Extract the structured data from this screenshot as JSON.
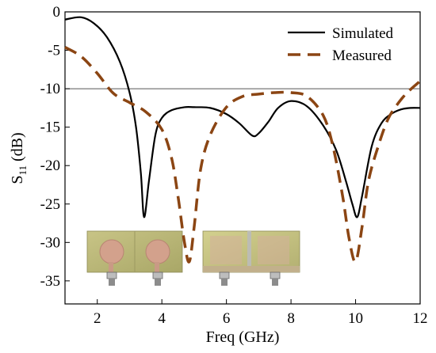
{
  "chart_data": {
    "type": "line",
    "xlabel": "Freq (GHz)",
    "ylabel": {
      "main": "S",
      "subscript": "11",
      "suffix": " (dB)"
    },
    "xlim": [
      1,
      12
    ],
    "ylim": [
      -38,
      0
    ],
    "xticks": [
      2,
      4,
      6,
      8,
      10,
      12
    ],
    "yticks": [
      0,
      -5,
      -10,
      -15,
      -20,
      -25,
      -30,
      -35
    ],
    "reference_line": -10,
    "legend_position": "top-right",
    "series": [
      {
        "name": "Simulated",
        "color": "#000000",
        "style": "solid",
        "x": [
          1.0,
          1.5,
          1.9,
          2.3,
          2.7,
          3.0,
          3.2,
          3.35,
          3.45,
          3.6,
          3.8,
          4.0,
          4.3,
          4.7,
          5.0,
          5.5,
          6.0,
          6.4,
          6.8,
          7.0,
          7.3,
          7.6,
          8.0,
          8.5,
          9.0,
          9.4,
          9.7,
          9.9,
          10.05,
          10.2,
          10.5,
          10.8,
          11.1,
          11.4,
          11.7,
          12.0
        ],
        "y": [
          -1.0,
          -0.7,
          -1.5,
          -3.3,
          -6.5,
          -10.5,
          -15.0,
          -21.0,
          -26.7,
          -22.0,
          -16.0,
          -13.8,
          -12.8,
          -12.4,
          -12.4,
          -12.5,
          -13.3,
          -14.5,
          -16.1,
          -15.8,
          -14.3,
          -12.5,
          -11.6,
          -12.3,
          -14.8,
          -18.0,
          -22.0,
          -25.0,
          -26.7,
          -24.0,
          -17.5,
          -14.5,
          -13.3,
          -12.7,
          -12.5,
          -12.5
        ]
      },
      {
        "name": "Measured",
        "color": "#8b4513",
        "style": "dashed",
        "x": [
          1.0,
          1.5,
          2.0,
          2.5,
          3.0,
          3.5,
          4.0,
          4.3,
          4.5,
          4.7,
          4.85,
          5.0,
          5.2,
          5.5,
          6.0,
          6.5,
          7.0,
          7.5,
          8.0,
          8.5,
          9.0,
          9.3,
          9.6,
          9.8,
          10.0,
          10.2,
          10.4,
          10.7,
          11.0,
          11.3,
          11.6,
          12.0
        ],
        "y": [
          -4.6,
          -5.8,
          -8.0,
          -10.6,
          -11.8,
          -13.0,
          -15.3,
          -19.0,
          -24.0,
          -30.0,
          -32.5,
          -28.0,
          -20.5,
          -16.0,
          -12.4,
          -11.0,
          -10.7,
          -10.5,
          -10.5,
          -11.0,
          -13.5,
          -17.5,
          -24.0,
          -29.5,
          -32.5,
          -28.0,
          -22.0,
          -17.5,
          -14.0,
          -12.0,
          -10.5,
          -9.0
        ]
      }
    ]
  },
  "inset_photos": [
    {
      "name": "antenna-photo-front"
    },
    {
      "name": "antenna-photo-back"
    }
  ]
}
